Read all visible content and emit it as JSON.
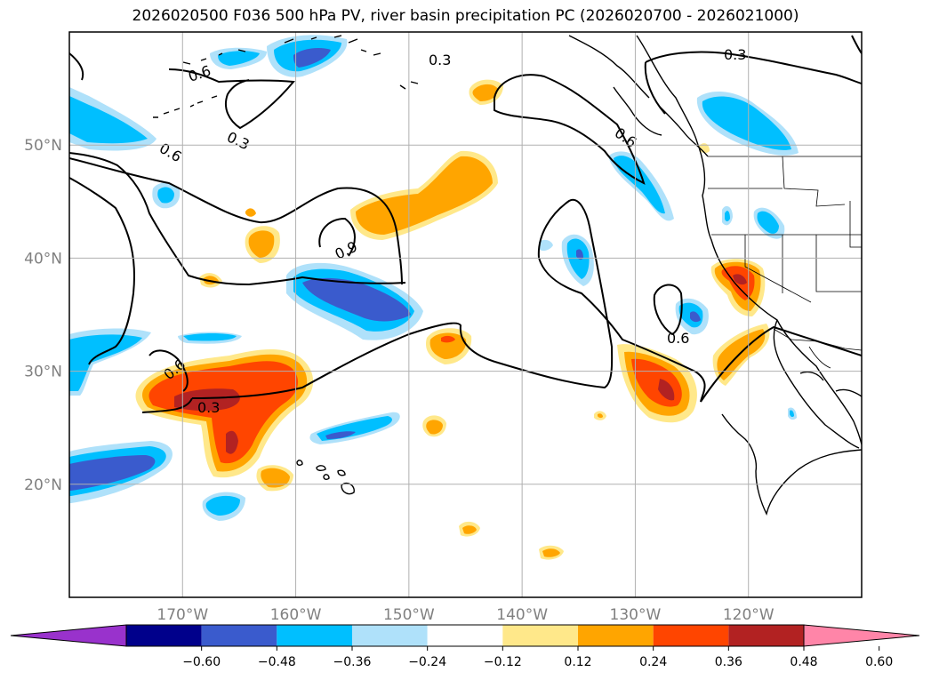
{
  "title": "2026020500 F036 500 hPa PV, river basin precipitation PC (2026020700 - 2026021000)",
  "map": {
    "lon_range": [
      -180,
      -110
    ],
    "lat_range": [
      10,
      60
    ],
    "lon_ticks": [
      {
        "lon": -170,
        "label": "170°W"
      },
      {
        "lon": -160,
        "label": "160°W"
      },
      {
        "lon": -150,
        "label": "150°W"
      },
      {
        "lon": -140,
        "label": "140°W"
      },
      {
        "lon": -130,
        "label": "130°W"
      },
      {
        "lon": -120,
        "label": "120°W"
      }
    ],
    "lat_ticks": [
      {
        "lat": 20,
        "label": "20°N"
      },
      {
        "lat": 30,
        "label": "30°N"
      },
      {
        "lat": 40,
        "label": "40°N"
      },
      {
        "lat": 50,
        "label": "50°N"
      }
    ],
    "pv_contour_labels": [
      "0.3",
      "0.6",
      "0.6",
      "0.3",
      "0.6",
      "0.9",
      "0.6",
      "0.3",
      "0.3",
      "0.6",
      "0.6"
    ]
  },
  "colorbar": {
    "levels": [
      "−0.60",
      "−0.48",
      "−0.36",
      "−0.24",
      "−0.12",
      "0.12",
      "0.24",
      "0.36",
      "0.48",
      "0.60"
    ],
    "colors": [
      "#9932cc",
      "#00008b",
      "#3a5bcd",
      "#00bfff",
      "#afe1fa",
      "#ffffff",
      "#ffe88a",
      "#ffa500",
      "#ff4500",
      "#b22222",
      "#ff85a8"
    ]
  }
}
